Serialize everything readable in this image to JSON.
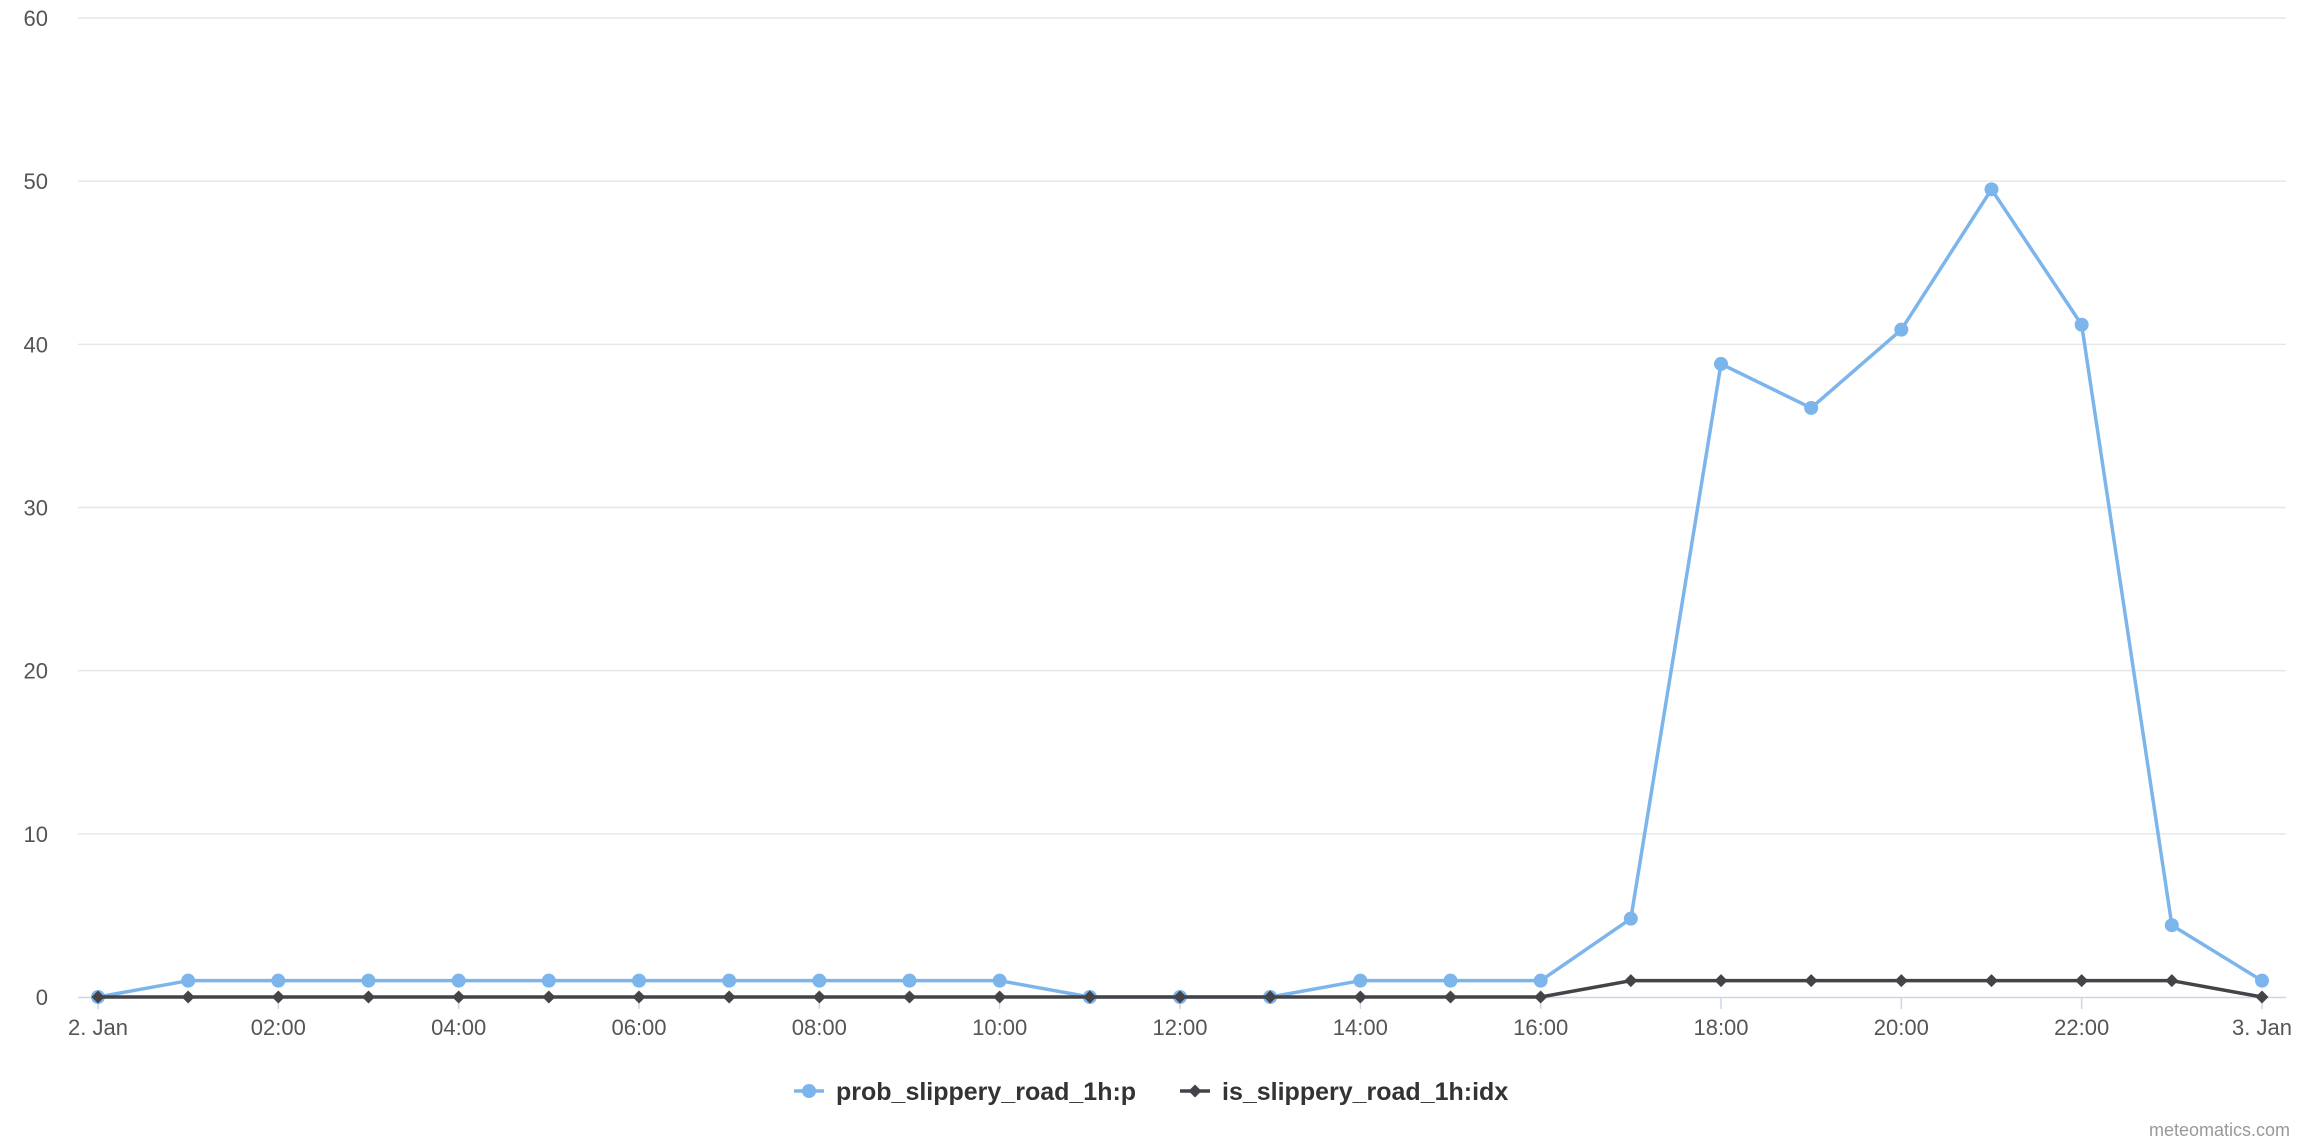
{
  "chart_data": {
    "type": "line",
    "x_tick_labels": [
      "2. Jan",
      "02:00",
      "04:00",
      "06:00",
      "08:00",
      "10:00",
      "12:00",
      "14:00",
      "16:00",
      "18:00",
      "20:00",
      "22:00",
      "3. Jan"
    ],
    "x_tick_hours": [
      0,
      2,
      4,
      6,
      8,
      10,
      12,
      14,
      16,
      18,
      20,
      22,
      24
    ],
    "x": [
      0,
      1,
      2,
      3,
      4,
      5,
      6,
      7,
      8,
      9,
      10,
      11,
      12,
      13,
      14,
      15,
      16,
      17,
      18,
      19,
      20,
      21,
      22,
      23,
      24
    ],
    "x_unit": "hour from 2. Jan 00:00",
    "ylim": [
      0,
      60
    ],
    "y_ticks": [
      0,
      10,
      20,
      30,
      40,
      50,
      60
    ],
    "grid": "horizontal",
    "legend_position": "bottom-center",
    "series": [
      {
        "name": "prob_slippery_road_1h:p",
        "color": "#7cb5ec",
        "marker": "circle",
        "values": [
          0,
          1,
          1,
          1,
          1,
          1,
          1,
          1,
          1,
          1,
          1,
          0,
          0,
          0,
          1,
          1,
          1,
          4.8,
          38.8,
          36.1,
          40.9,
          49.5,
          41.2,
          4.4,
          1
        ]
      },
      {
        "name": "is_slippery_road_1h:idx",
        "color": "#434348",
        "marker": "diamond",
        "values": [
          0,
          0,
          0,
          0,
          0,
          0,
          0,
          0,
          0,
          0,
          0,
          0,
          0,
          0,
          0,
          0,
          0,
          1,
          1,
          1,
          1,
          1,
          1,
          1,
          0
        ]
      }
    ]
  },
  "credit": "meteomatics.com"
}
